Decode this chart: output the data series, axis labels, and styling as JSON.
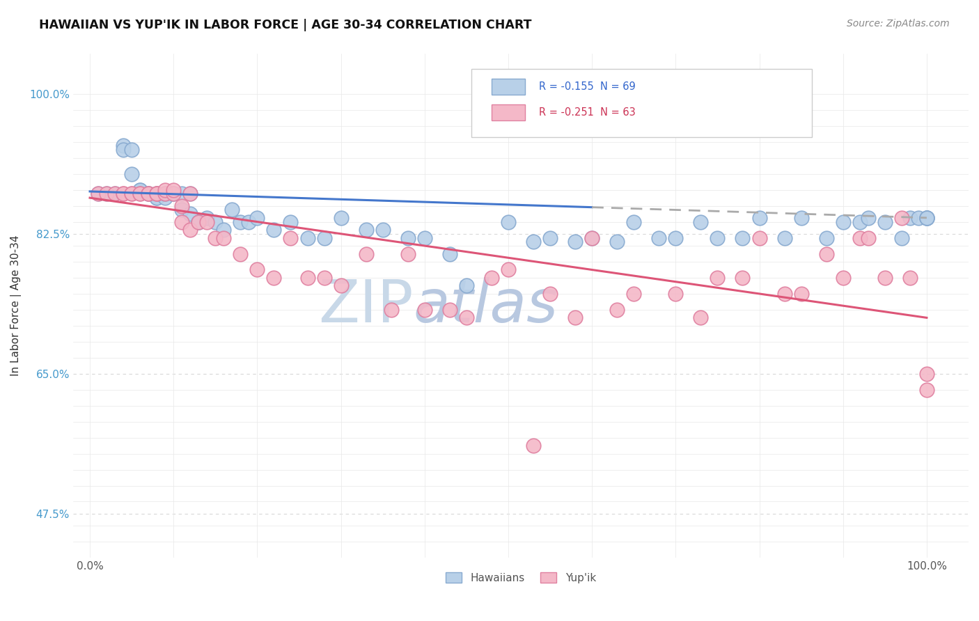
{
  "title": "HAWAIIAN VS YUP'IK IN LABOR FORCE | AGE 30-34 CORRELATION CHART",
  "source_text": "Source: ZipAtlas.com",
  "ylabel": "In Labor Force | Age 30-34",
  "hawaiians_color": "#b8d0e8",
  "hawaiians_edge": "#88aad0",
  "yupik_color": "#f4b8c8",
  "yupik_edge": "#e080a0",
  "trendline_h_color": "#4477cc",
  "trendline_y_color": "#dd5577",
  "trendline_dashed_color": "#aaaaaa",
  "watermark_zip_color": "#c8d8e8",
  "watermark_atlas_color": "#b8c8e0",
  "background_color": "#ffffff",
  "grid_color": "#e8e8e8",
  "grid_dashed_color": "#d8d8d8",
  "ytick_color": "#4499cc",
  "xtick_color": "#555555",
  "legend_text_h_color": "#3366cc",
  "legend_text_y_color": "#cc3355",
  "hawaiians_x": [
    0.01,
    0.02,
    0.03,
    0.04,
    0.04,
    0.05,
    0.05,
    0.06,
    0.06,
    0.07,
    0.07,
    0.08,
    0.08,
    0.08,
    0.09,
    0.09,
    0.1,
    0.1,
    0.11,
    0.11,
    0.12,
    0.12,
    0.13,
    0.13,
    0.14,
    0.15,
    0.16,
    0.17,
    0.18,
    0.19,
    0.2,
    0.22,
    0.24,
    0.26,
    0.28,
    0.3,
    0.33,
    0.35,
    0.38,
    0.4,
    0.43,
    0.45,
    0.5,
    0.53,
    0.55,
    0.58,
    0.6,
    0.63,
    0.65,
    0.68,
    0.7,
    0.73,
    0.75,
    0.78,
    0.8,
    0.83,
    0.85,
    0.88,
    0.9,
    0.92,
    0.93,
    0.95,
    0.97,
    0.98,
    0.99,
    1.0,
    1.0,
    1.0,
    1.0
  ],
  "hawaiians_y": [
    0.875,
    0.875,
    0.875,
    0.935,
    0.93,
    0.93,
    0.9,
    0.88,
    0.88,
    0.875,
    0.875,
    0.875,
    0.87,
    0.87,
    0.87,
    0.875,
    0.875,
    0.875,
    0.875,
    0.855,
    0.875,
    0.85,
    0.84,
    0.84,
    0.845,
    0.84,
    0.83,
    0.855,
    0.84,
    0.84,
    0.845,
    0.83,
    0.84,
    0.82,
    0.82,
    0.845,
    0.83,
    0.83,
    0.82,
    0.82,
    0.8,
    0.76,
    0.84,
    0.815,
    0.82,
    0.815,
    0.82,
    0.815,
    0.84,
    0.82,
    0.82,
    0.84,
    0.82,
    0.82,
    0.845,
    0.82,
    0.845,
    0.82,
    0.84,
    0.84,
    0.845,
    0.84,
    0.82,
    0.845,
    0.845,
    0.845,
    0.845,
    0.845,
    0.845
  ],
  "yupik_x": [
    0.01,
    0.02,
    0.03,
    0.04,
    0.04,
    0.05,
    0.05,
    0.06,
    0.06,
    0.07,
    0.07,
    0.08,
    0.08,
    0.08,
    0.09,
    0.09,
    0.1,
    0.1,
    0.11,
    0.11,
    0.12,
    0.12,
    0.13,
    0.14,
    0.15,
    0.16,
    0.18,
    0.2,
    0.22,
    0.24,
    0.26,
    0.28,
    0.3,
    0.33,
    0.36,
    0.38,
    0.4,
    0.43,
    0.45,
    0.48,
    0.5,
    0.53,
    0.55,
    0.58,
    0.6,
    0.63,
    0.65,
    0.7,
    0.73,
    0.75,
    0.78,
    0.8,
    0.83,
    0.85,
    0.88,
    0.9,
    0.92,
    0.93,
    0.95,
    0.97,
    0.98,
    1.0,
    1.0
  ],
  "yupik_y": [
    0.875,
    0.875,
    0.875,
    0.875,
    0.875,
    0.875,
    0.875,
    0.875,
    0.875,
    0.875,
    0.875,
    0.875,
    0.875,
    0.875,
    0.875,
    0.88,
    0.875,
    0.88,
    0.86,
    0.84,
    0.875,
    0.83,
    0.84,
    0.84,
    0.82,
    0.82,
    0.8,
    0.78,
    0.77,
    0.82,
    0.77,
    0.77,
    0.76,
    0.8,
    0.73,
    0.8,
    0.73,
    0.73,
    0.72,
    0.77,
    0.78,
    0.56,
    0.75,
    0.72,
    0.82,
    0.73,
    0.75,
    0.75,
    0.72,
    0.77,
    0.77,
    0.82,
    0.75,
    0.75,
    0.8,
    0.77,
    0.82,
    0.82,
    0.77,
    0.845,
    0.77,
    0.63,
    0.65
  ],
  "h_trendline_x0": 0.0,
  "h_trendline_y0": 0.878,
  "h_trendline_x1": 1.0,
  "h_trendline_y1": 0.845,
  "h_trendline_solid_end": 0.6,
  "y_trendline_x0": 0.0,
  "y_trendline_y0": 0.87,
  "y_trendline_x1": 1.0,
  "y_trendline_y1": 0.72,
  "xlim": [
    -0.02,
    1.05
  ],
  "ylim": [
    0.42,
    1.05
  ],
  "yticks": [
    0.475,
    0.65,
    0.825,
    1.0
  ],
  "ytick_labels": [
    "47.5%",
    "65.0%",
    "82.5%",
    "100.0%"
  ],
  "xticks": [
    0.0,
    1.0
  ],
  "xtick_labels": [
    "0.0%",
    "100.0%"
  ]
}
